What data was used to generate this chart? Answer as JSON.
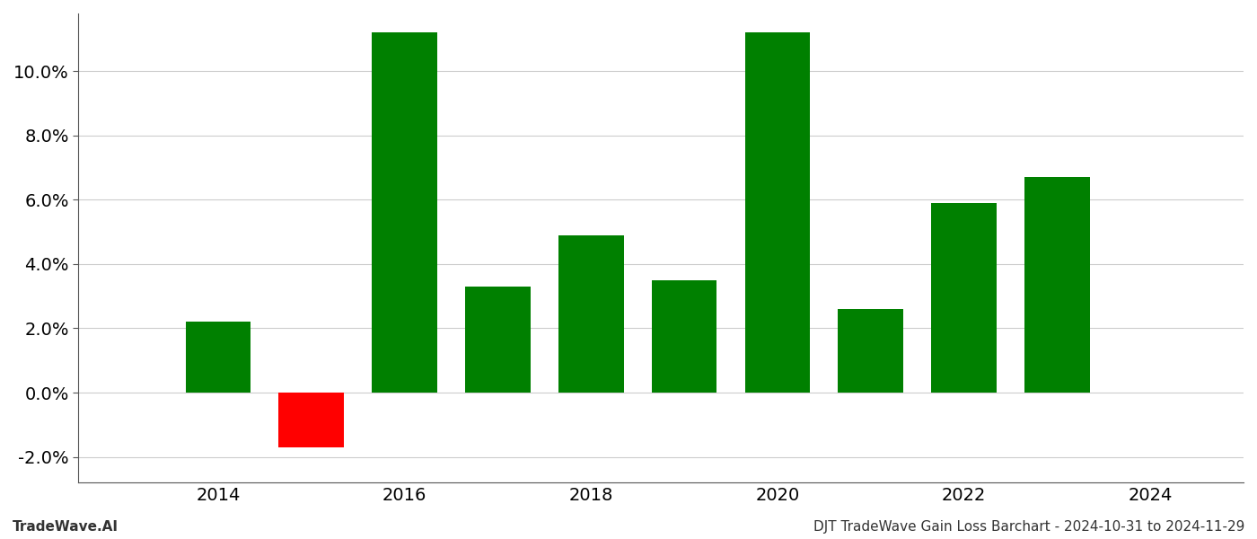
{
  "years": [
    2014,
    2015,
    2016,
    2017,
    2018,
    2019,
    2020,
    2021,
    2022,
    2023
  ],
  "values": [
    0.022,
    -0.017,
    0.112,
    0.033,
    0.049,
    0.035,
    0.112,
    0.026,
    0.059,
    0.067
  ],
  "colors": [
    "#008000",
    "#ff0000",
    "#008000",
    "#008000",
    "#008000",
    "#008000",
    "#008000",
    "#008000",
    "#008000",
    "#008000"
  ],
  "ylim": [
    -0.028,
    0.118
  ],
  "yticks": [
    -0.02,
    0.0,
    0.02,
    0.04,
    0.06,
    0.08,
    0.1
  ],
  "xlim": [
    2012.5,
    2025.0
  ],
  "xticks": [
    2014,
    2016,
    2018,
    2020,
    2022,
    2024
  ],
  "tick_fontsize": 14,
  "bar_width": 0.7,
  "grid_color": "#cccccc",
  "background_color": "#ffffff",
  "footer_left": "TradeWave.AI",
  "footer_right": "DJT TradeWave Gain Loss Barchart - 2024-10-31 to 2024-11-29",
  "footer_fontsize": 11,
  "spine_color": "#555555"
}
